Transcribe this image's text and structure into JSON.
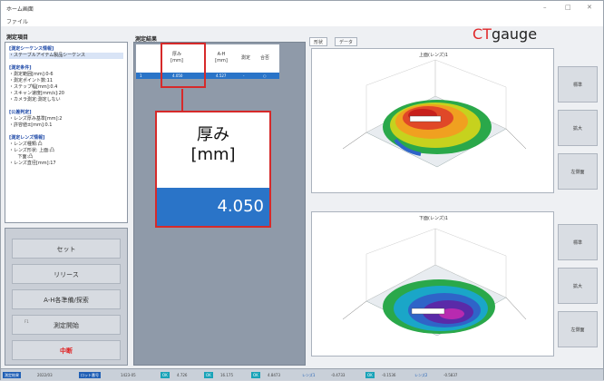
{
  "window": {
    "title": "ホーム画面",
    "controls": [
      "–",
      "□",
      "✕"
    ]
  },
  "menu": {
    "file": "ファイル"
  },
  "left": {
    "title": "測定項目",
    "groups": [
      {
        "header": "[測定シーケンス情報]",
        "lines": [
          "・ステーブルアイテム製品シーケンス"
        ]
      },
      {
        "header": "[測定条件]",
        "lines": [
          "・測定範囲[mm]:0-6",
          "・測定ポイント数:11",
          "・ステップ幅[mm]:0.4",
          "・スキャン速度[mm/s]:20",
          "・カメラ測定:測定しない"
        ]
      },
      {
        "header": "[公差判定]",
        "lines": [
          "・レンズ厚み基準[mm]:2",
          "・許容値±[mm]:0.1"
        ]
      },
      {
        "header": "[測定レンズ情報]",
        "lines": [
          "・レンズ種類:凸",
          "・レンズ形状: 上面:凸",
          "      下面:凸",
          "・レンズ直径[mm]:17"
        ]
      }
    ],
    "buttons": {
      "set": "セット",
      "release": "リリース",
      "origin": "A-H各準備/探索",
      "start": "測定開始",
      "stop": "中断"
    },
    "start_note": "F1"
  },
  "middle": {
    "title": "測定結果",
    "headers": {
      "thickness": "厚み\n[mm]",
      "ah": "A-H\n[mm]",
      "judge": "測定",
      "ok": "合否"
    },
    "row": {
      "no": "1",
      "thickness": "4.050",
      "ah": "4.527",
      "judge": "-",
      "ok": "○"
    },
    "callout": {
      "label_line1": "厚み",
      "label_line2": "[mm]",
      "value": "4.050"
    }
  },
  "right": {
    "tabs": [
      "形状",
      "データ"
    ],
    "logo_ct": "CT",
    "logo_gauge": "gauge",
    "top_plot_title": "上面(レンズ)1",
    "bottom_plot_title": "下面(レンズ)1",
    "side_buttons_top": [
      "標準",
      "拡大",
      "左側面"
    ],
    "side_buttons_bottom": [
      "標準",
      "拡大",
      "左側面"
    ]
  },
  "status": {
    "items": [
      {
        "text": "測定結果",
        "style": "blue"
      },
      {
        "text": "2022/03",
        "style": "plain"
      },
      {
        "text": "ロット番号",
        "style": "blue"
      },
      {
        "text": "1423-05",
        "style": "plain"
      },
      {
        "text": "OK",
        "style": "teal"
      },
      {
        "text": "4.726",
        "style": "plain"
      },
      {
        "text": "OK",
        "style": "teal"
      },
      {
        "text": "16.175",
        "style": "plain"
      },
      {
        "text": "OK",
        "style": "teal"
      },
      {
        "text": "4.8473",
        "style": "plain"
      },
      {
        "text": "レンズ1",
        "style": "bluetx"
      },
      {
        "text": "-0.4733",
        "style": "plain"
      },
      {
        "text": "OK",
        "style": "teal"
      },
      {
        "text": "-0.1536",
        "style": "plain"
      },
      {
        "text": "レンズ2",
        "style": "bluetx"
      },
      {
        "text": "-0.5837",
        "style": "plain"
      }
    ]
  },
  "colors": {
    "accent_blue": "#2a74c8",
    "highlight_red": "#d62a2a",
    "logo_red": "#e0282a"
  }
}
